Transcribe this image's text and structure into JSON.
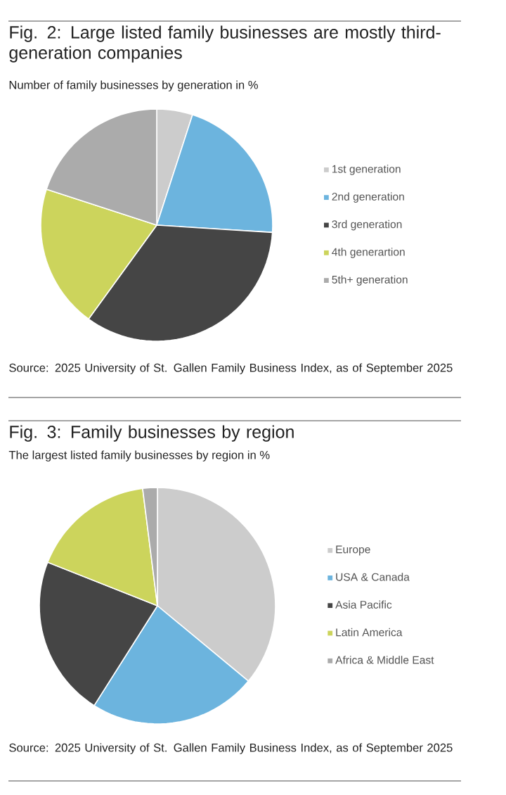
{
  "chart_data": [
    {
      "type": "pie",
      "title": "Fig. 2: Large listed family businesses are mostly third-generation companies",
      "subtitle": "Number of family businesses by generation in %",
      "categories": [
        "1st generation",
        "2nd generation",
        "3rd generation",
        "4th generartion",
        "5th+ generation"
      ],
      "values": [
        5,
        21,
        34,
        20,
        20
      ],
      "colors": [
        "#cccccc",
        "#6cb4de",
        "#454545",
        "#ccd45c",
        "#ababab"
      ],
      "legend": "right",
      "annotations": [
        "Source: 2025 University of St. Gallen Family Business Index, as of September 2025"
      ]
    },
    {
      "type": "pie",
      "title": "Fig. 3: Family businesses by region",
      "subtitle": "The largest listed family businesses by region in %",
      "categories": [
        "Europe",
        "USA & Canada",
        "Asia Pacific",
        "Latin America",
        "Africa & Middle East"
      ],
      "values": [
        36,
        23,
        22,
        17,
        2
      ],
      "colors": [
        "#cccccc",
        "#6cb4de",
        "#454545",
        "#ccd45c",
        "#ababab"
      ],
      "legend": "right",
      "annotations": [
        "Source: 2025 University of St. Gallen Family Business Index, as of September 2025"
      ]
    }
  ]
}
